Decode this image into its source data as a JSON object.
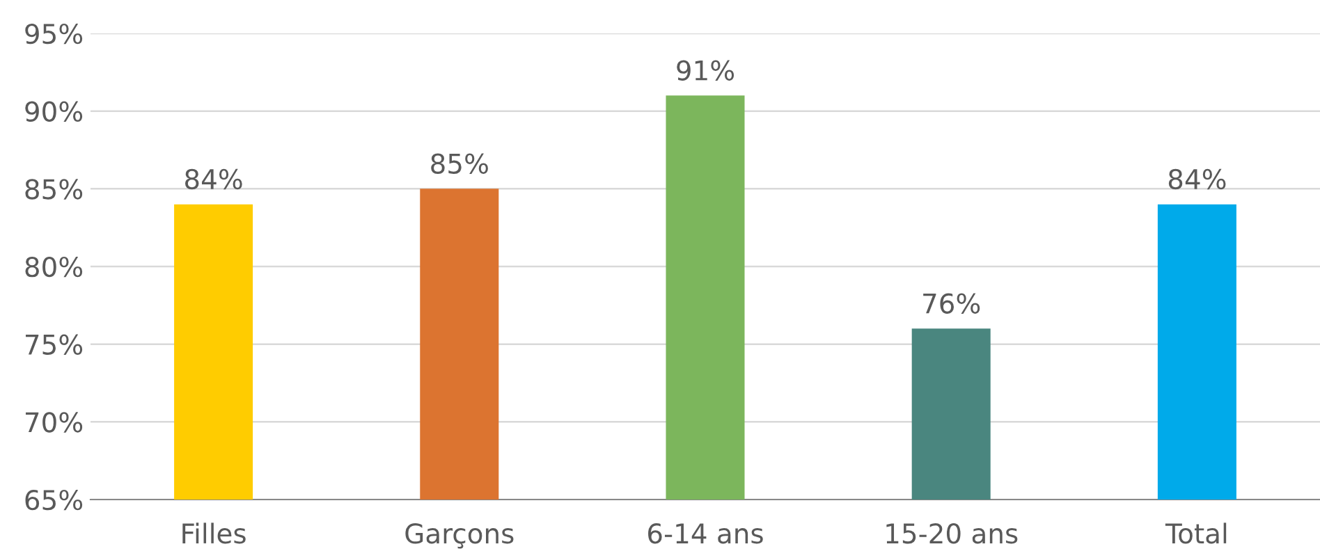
{
  "chart_data": {
    "type": "bar",
    "categories": [
      "Filles",
      "Garçons",
      "6-14 ans",
      "15-20 ans",
      "Total"
    ],
    "values": [
      84,
      85,
      91,
      76,
      84
    ],
    "colors": [
      "#ffcc00",
      "#dc7430",
      "#7cb65c",
      "#4a867f",
      "#00aaea"
    ],
    "value_labels": [
      "84%",
      "85%",
      "91%",
      "76%",
      "84%"
    ],
    "ylim": [
      65,
      95
    ],
    "yticks": [
      {
        "value": 65,
        "label": "65%"
      },
      {
        "value": 70,
        "label": "70%"
      },
      {
        "value": 75,
        "label": "75%"
      },
      {
        "value": 80,
        "label": "80%"
      },
      {
        "value": 85,
        "label": "85%"
      },
      {
        "value": 90,
        "label": "90%"
      },
      {
        "value": 95,
        "label": "95%"
      }
    ],
    "grid": "y",
    "legend": false
  }
}
